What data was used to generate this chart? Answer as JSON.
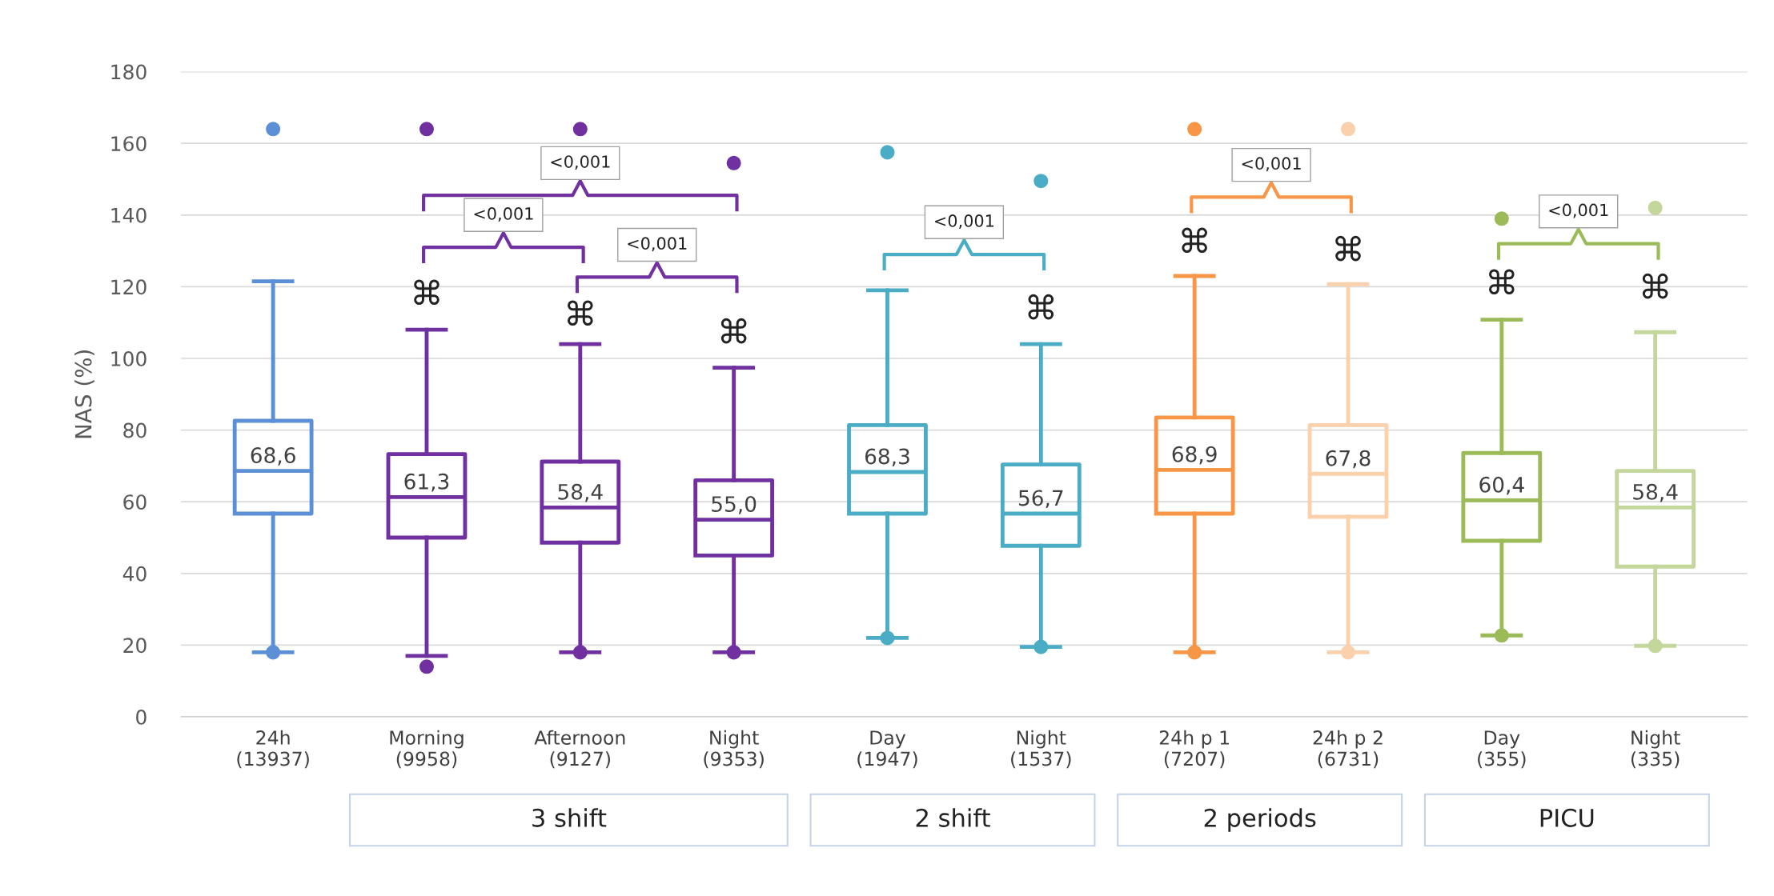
{
  "chart_data": {
    "type": "box",
    "ylabel": "NAS (%)",
    "categories": [
      "24h\n(13937)",
      "Morning\n(9958)",
      "Afternoon\n(9127)",
      "Night\n(9353)",
      "Day\n(1947)",
      "Night\n(1537)",
      "24h p 1\n(7207)",
      "24h p 2\n(6731)",
      "Day\n(355)",
      "Night\n(335)"
    ],
    "colors": [
      "#5b8fd6",
      "#7030a0",
      "#7030a0",
      "#7030a0",
      "#4bacc6",
      "#4bacc6",
      "#f79646",
      "#fbd0ad",
      "#9bbb59",
      "#c3d69b"
    ],
    "boxes": [
      {
        "low": 18,
        "q1": 56.7,
        "median": 68.6,
        "q3": 82.6,
        "high": 121.5,
        "outliers": [
          164,
          18
        ]
      },
      {
        "low": 17,
        "q1": 50,
        "median": 61.3,
        "q3": 73.3,
        "high": 108,
        "outliers": [
          164,
          14
        ]
      },
      {
        "low": 18,
        "q1": 48.6,
        "median": 58.4,
        "q3": 71.2,
        "high": 104,
        "outliers": [
          164,
          18
        ]
      },
      {
        "low": 18,
        "q1": 45,
        "median": 55.0,
        "q3": 66,
        "high": 97.4,
        "outliers": [
          154.5,
          18
        ]
      },
      {
        "low": 22,
        "q1": 56.7,
        "median": 68.3,
        "q3": 81.4,
        "high": 119,
        "outliers": [
          157.5,
          22
        ]
      },
      {
        "low": 19.5,
        "q1": 47.7,
        "median": 56.7,
        "q3": 70.4,
        "high": 104,
        "outliers": [
          149.5,
          19.5
        ]
      },
      {
        "low": 18,
        "q1": 56.7,
        "median": 68.9,
        "q3": 83.5,
        "high": 123,
        "outliers": [
          164,
          18
        ]
      },
      {
        "low": 18,
        "q1": 55.8,
        "median": 67.8,
        "q3": 81.4,
        "high": 120.7,
        "outliers": [
          164,
          18
        ]
      },
      {
        "low": 22.7,
        "q1": 49.1,
        "median": 60.4,
        "q3": 73.6,
        "high": 110.8,
        "outliers": [
          139,
          22.7
        ]
      },
      {
        "low": 19.8,
        "q1": 41.9,
        "median": 58.4,
        "q3": 68.6,
        "high": 107.3,
        "outliers": [
          142,
          19.8
        ]
      }
    ],
    "value_labels": [
      "68,6",
      "61,3",
      "58,4",
      "55,0",
      "68,3",
      "56,7",
      "68,9",
      "67,8",
      "60,4",
      "58,4"
    ],
    "ylim": [
      0,
      180
    ],
    "yticks": [
      0,
      20,
      40,
      60,
      80,
      100,
      120,
      140,
      160,
      180
    ],
    "grid": "y",
    "annotations": [
      "<0,001",
      "<0,001",
      "<0,001",
      "<0,001",
      "<0,001",
      "<0,001",
      "3 shift",
      "2 shift",
      "2 periods",
      "PICU",
      "⌘",
      "⌘",
      "⌘",
      "⌘",
      "⌘",
      "⌘",
      "⌘",
      "⌘"
    ]
  }
}
